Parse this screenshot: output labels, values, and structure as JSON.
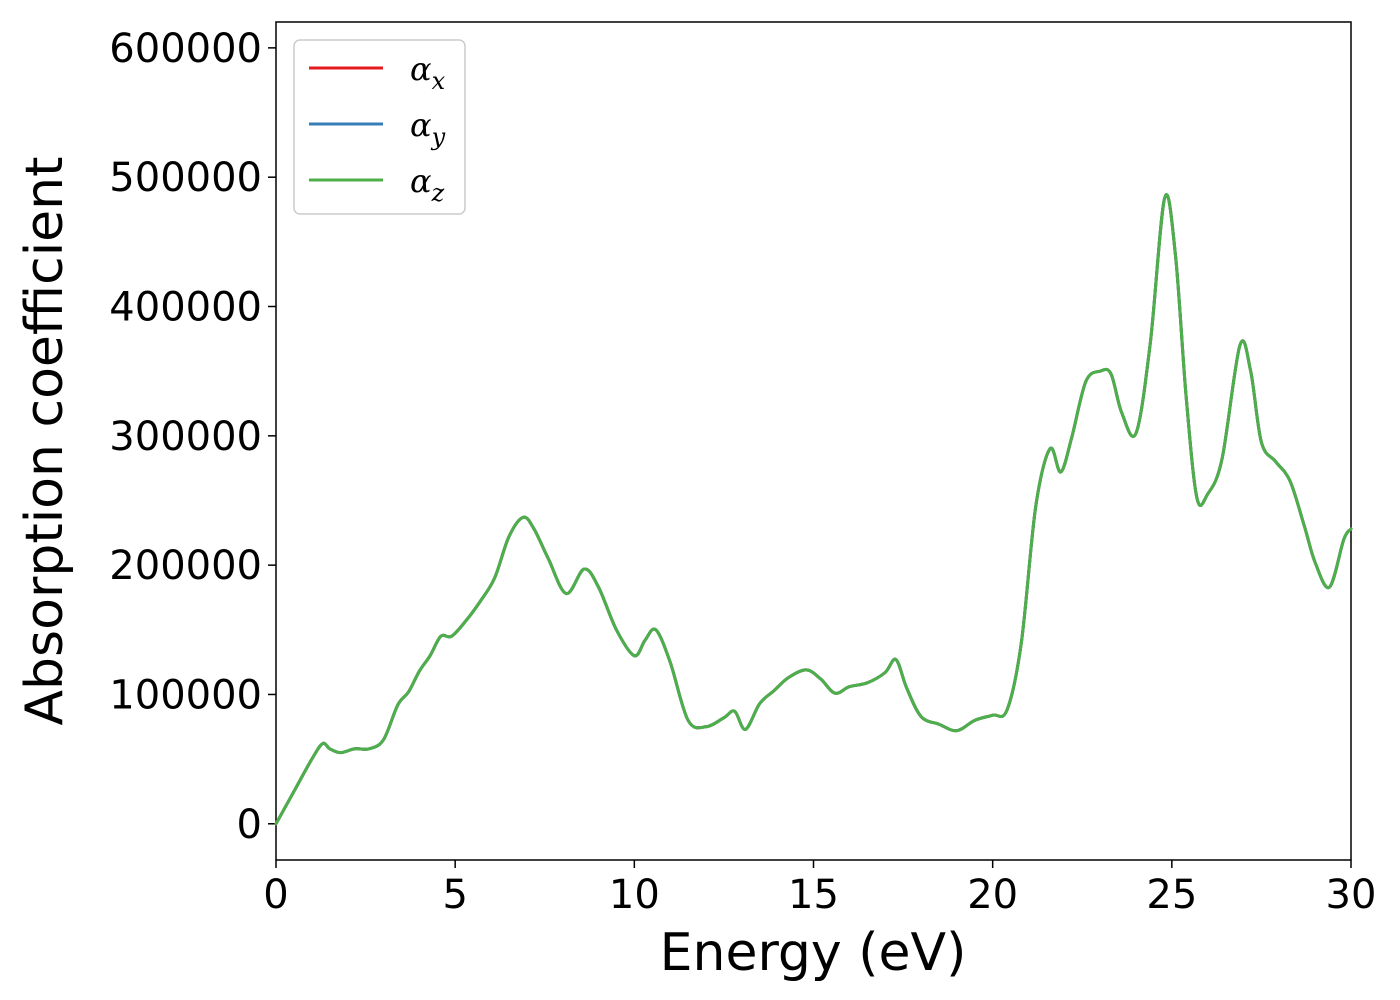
{
  "chart_data": {
    "type": "line",
    "xlabel": "Energy (eV)",
    "ylabel": "Absorption coefficient",
    "xlim": [
      0,
      30
    ],
    "ylim": [
      -28000,
      620000
    ],
    "xticks": [
      0,
      5,
      10,
      15,
      20,
      25,
      30
    ],
    "yticks": [
      0,
      100000,
      200000,
      300000,
      400000,
      500000,
      600000
    ],
    "grid": false,
    "legend_position": "top-left",
    "x": [
      0,
      0.5,
      1.0,
      1.3,
      1.5,
      1.8,
      2.2,
      2.6,
      3.0,
      3.4,
      3.7,
      4.0,
      4.3,
      4.6,
      4.9,
      5.3,
      5.7,
      6.1,
      6.5,
      6.9,
      7.2,
      7.6,
      8.1,
      8.6,
      9.0,
      9.5,
      10.0,
      10.3,
      10.6,
      11.0,
      11.5,
      12.0,
      12.5,
      12.8,
      13.1,
      13.5,
      13.9,
      14.3,
      14.8,
      15.2,
      15.6,
      16.0,
      16.5,
      17.0,
      17.3,
      17.6,
      18.0,
      18.5,
      19.0,
      19.5,
      20.0,
      20.4,
      20.8,
      21.2,
      21.6,
      21.9,
      22.2,
      22.6,
      23.0,
      23.3,
      23.6,
      24.0,
      24.4,
      24.8,
      25.1,
      25.4,
      25.7,
      26.0,
      26.4,
      26.9,
      27.2,
      27.5,
      27.9,
      28.3,
      28.7,
      29.0,
      29.4,
      29.8,
      30.0
    ],
    "series": [
      {
        "name": "α_x",
        "color": "#e41a1c",
        "values": [
          0,
          25000,
          50000,
          62000,
          58000,
          55000,
          58000,
          58000,
          65000,
          92000,
          102000,
          118000,
          130000,
          145000,
          145000,
          157000,
          172000,
          190000,
          222000,
          237000,
          228000,
          205000,
          178000,
          197000,
          183000,
          150000,
          130000,
          142000,
          150000,
          125000,
          80000,
          75000,
          82000,
          87000,
          73000,
          93000,
          103000,
          113000,
          119000,
          112000,
          101000,
          106000,
          109000,
          117000,
          127000,
          105000,
          83000,
          77000,
          72000,
          80000,
          84000,
          88000,
          140000,
          245000,
          290000,
          272000,
          298000,
          342000,
          350000,
          348000,
          318000,
          302000,
          372000,
          484000,
          440000,
          330000,
          252000,
          255000,
          282000,
          370000,
          350000,
          295000,
          280000,
          265000,
          230000,
          202000,
          183000,
          220000,
          228000
        ]
      },
      {
        "name": "α_y",
        "color": "#377eb8",
        "values": [
          0,
          25000,
          50000,
          62000,
          58000,
          55000,
          58000,
          58000,
          65000,
          92000,
          102000,
          118000,
          130000,
          145000,
          145000,
          157000,
          172000,
          190000,
          222000,
          237000,
          228000,
          205000,
          178000,
          197000,
          183000,
          150000,
          130000,
          142000,
          150000,
          125000,
          80000,
          75000,
          82000,
          87000,
          73000,
          93000,
          103000,
          113000,
          119000,
          112000,
          101000,
          106000,
          109000,
          117000,
          127000,
          105000,
          83000,
          77000,
          72000,
          80000,
          84000,
          88000,
          140000,
          245000,
          290000,
          272000,
          298000,
          342000,
          350000,
          348000,
          318000,
          302000,
          372000,
          484000,
          440000,
          330000,
          252000,
          255000,
          282000,
          370000,
          350000,
          295000,
          280000,
          265000,
          230000,
          202000,
          183000,
          220000,
          228000
        ]
      },
      {
        "name": "α_z",
        "color": "#4daf4a",
        "values": [
          0,
          25000,
          50000,
          62000,
          58000,
          55000,
          58000,
          58000,
          65000,
          92000,
          102000,
          118000,
          130000,
          145000,
          145000,
          157000,
          172000,
          190000,
          222000,
          237000,
          228000,
          205000,
          178000,
          197000,
          183000,
          150000,
          130000,
          142000,
          150000,
          125000,
          80000,
          75000,
          82000,
          87000,
          73000,
          93000,
          103000,
          113000,
          119000,
          112000,
          101000,
          106000,
          109000,
          117000,
          127000,
          105000,
          83000,
          77000,
          72000,
          80000,
          84000,
          88000,
          140000,
          245000,
          290000,
          272000,
          298000,
          342000,
          350000,
          348000,
          318000,
          302000,
          372000,
          484000,
          440000,
          330000,
          252000,
          255000,
          282000,
          370000,
          350000,
          295000,
          280000,
          265000,
          230000,
          202000,
          183000,
          220000,
          228000
        ]
      }
    ],
    "legend": [
      {
        "base": "α",
        "sub": "x",
        "color": "#e41a1c"
      },
      {
        "base": "α",
        "sub": "y",
        "color": "#377eb8"
      },
      {
        "base": "α",
        "sub": "z",
        "color": "#4daf4a"
      }
    ]
  }
}
